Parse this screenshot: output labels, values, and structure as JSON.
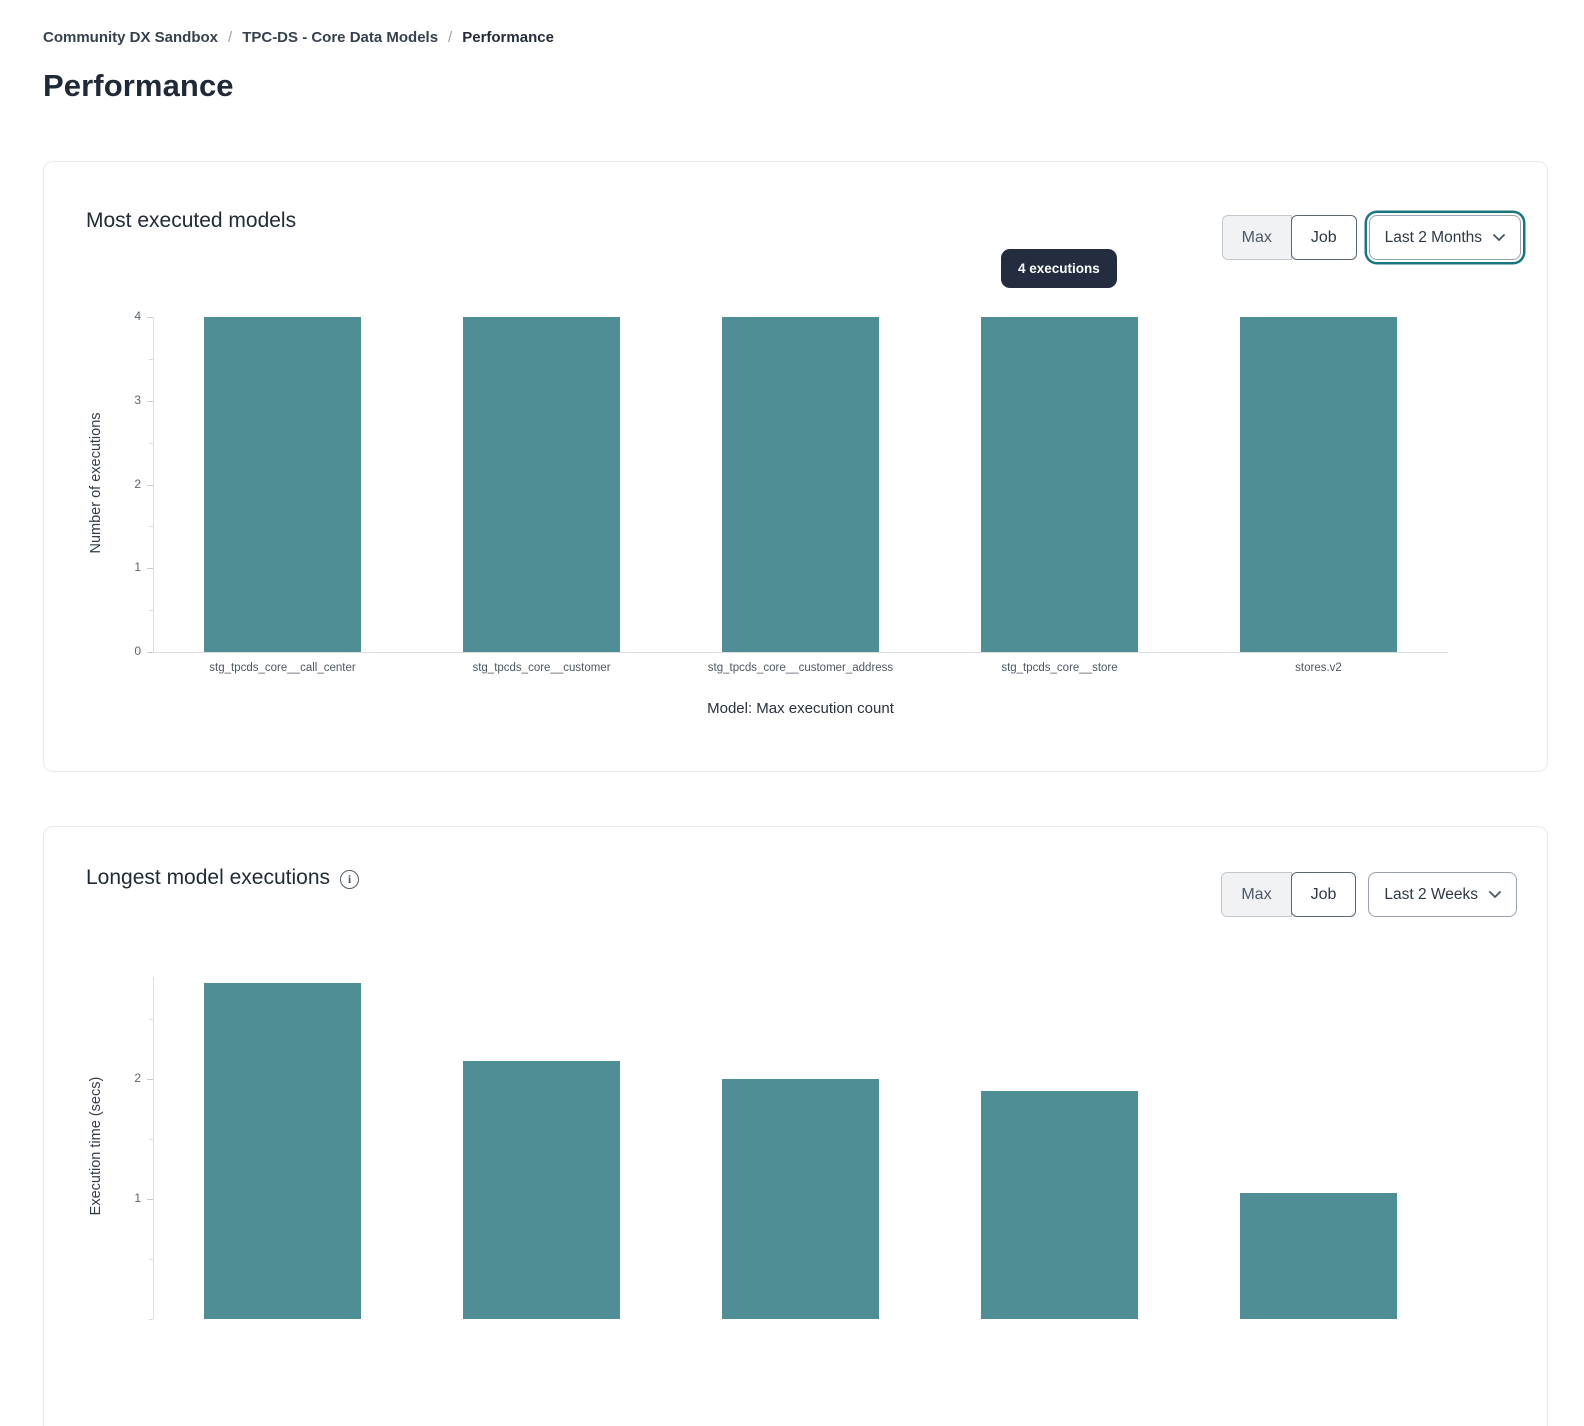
{
  "breadcrumb": {
    "separator": "/",
    "items": [
      {
        "label": "Community DX Sandbox"
      },
      {
        "label": "TPC-DS - Core Data Models"
      },
      {
        "label": "Performance"
      }
    ]
  },
  "page_title": "Performance",
  "colors": {
    "bar": "#4e8e94",
    "tooltip_bg": "#232d3f",
    "focus_ring": "#177680"
  },
  "card_most_executed": {
    "title": "Most executed models",
    "toggle": {
      "options": [
        "Max",
        "Job"
      ],
      "selected": "Job"
    },
    "dropdown": {
      "value": "Last 2 Months"
    },
    "tooltip": "4 executions"
  },
  "card_longest": {
    "title": "Longest model executions",
    "info_icon": "i",
    "toggle": {
      "options": [
        "Max",
        "Job"
      ],
      "selected": "Job"
    },
    "dropdown": {
      "value": "Last 2 Weeks"
    }
  },
  "chart_data": [
    {
      "type": "bar",
      "title": "Most executed models",
      "categories": [
        "stg_tpcds_core__call_center",
        "stg_tpcds_core__customer",
        "stg_tpcds_core__customer_address",
        "stg_tpcds_core__store",
        "stores.v2"
      ],
      "values": [
        4,
        4,
        4,
        4,
        4
      ],
      "xlabel": "Model: Max execution count",
      "ylabel": "Number of executions",
      "ylim": [
        0,
        4
      ],
      "yticks": [
        0,
        1,
        2,
        3,
        4
      ],
      "grid": false,
      "legend": false,
      "bar_color": "#4e8e94",
      "tooltip": {
        "text": "4 executions",
        "bar_index": 3
      }
    },
    {
      "type": "bar",
      "title": "Longest model executions",
      "categories": [
        "",
        "",
        "",
        "",
        ""
      ],
      "values": [
        2.8,
        2.15,
        2.0,
        1.9,
        1.05
      ],
      "xlabel": "",
      "ylabel": "Execution time (secs)",
      "ylim": [
        0,
        2.85
      ],
      "yticks": [
        1,
        2
      ],
      "grid": false,
      "legend": false,
      "bar_color": "#4e8e94"
    }
  ]
}
